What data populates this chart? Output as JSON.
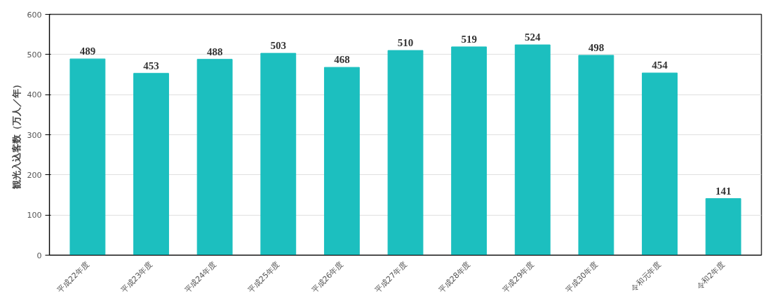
{
  "chart_data": {
    "type": "bar",
    "ylabel": "観光入込客数（万人／年）",
    "categories": [
      "平成22年度",
      "平成23年度",
      "平成24年度",
      "平成25年度",
      "平成26年度",
      "平成27年度",
      "平成28年度",
      "平成29年度",
      "平成30年度",
      "令和元年度",
      "令和2年度"
    ],
    "values": [
      489,
      453,
      488,
      503,
      468,
      510,
      519,
      524,
      498,
      454,
      141
    ],
    "color": "#1cbfbf",
    "ylim": [
      0,
      600
    ],
    "yticks": [
      0,
      100,
      200,
      300,
      400,
      500,
      600
    ],
    "grid": "y",
    "data_labels": true
  }
}
